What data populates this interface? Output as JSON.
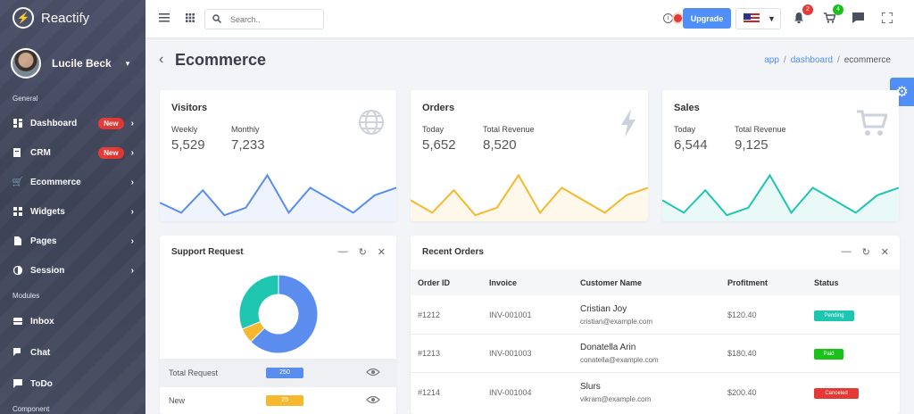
{
  "app": {
    "name": "Reactify"
  },
  "user": {
    "name": "Lucile Beck"
  },
  "sidebar": {
    "sections": [
      "General",
      "Modules",
      "Component"
    ],
    "items": [
      {
        "label": "Dashboard",
        "badge": "New",
        "icon": "dashboard-icon"
      },
      {
        "label": "CRM",
        "badge": "New",
        "icon": "crm-icon"
      },
      {
        "label": "Ecommerce",
        "badge": "",
        "icon": "cart-icon"
      },
      {
        "label": "Widgets",
        "badge": "",
        "icon": "widgets-icon"
      },
      {
        "label": "Pages",
        "badge": "",
        "icon": "pages-icon"
      },
      {
        "label": "Session",
        "badge": "",
        "icon": "session-icon"
      },
      {
        "label": "Inbox",
        "badge": "",
        "icon": "inbox-icon"
      },
      {
        "label": "Chat",
        "badge": "",
        "icon": "chat-icon"
      },
      {
        "label": "ToDo",
        "badge": "",
        "icon": "todo-icon"
      }
    ]
  },
  "topbar": {
    "search_placeholder": "Search..",
    "upgrade_label": "Upgrade",
    "notifications_count": "2",
    "cart_count": "4"
  },
  "page": {
    "title": "Ecommerce",
    "breadcrumb": [
      "app",
      "dashboard",
      "ecommerce"
    ]
  },
  "stats": [
    {
      "title": "Visitors",
      "icon": "globe-icon",
      "metrics": [
        {
          "label": "Weekly",
          "value": "5,529"
        },
        {
          "label": "Monthly",
          "value": "7,233"
        }
      ],
      "color": "#5b8def",
      "spark": [
        0.3,
        0.1,
        0.55,
        0.05,
        0.2,
        0.85,
        0.1,
        0.6,
        0.35,
        0.1,
        0.45,
        0.6
      ]
    },
    {
      "title": "Orders",
      "icon": "bolt-icon",
      "metrics": [
        {
          "label": "Today",
          "value": "5,652"
        },
        {
          "label": "Total Revenue",
          "value": "8,520"
        }
      ],
      "color": "#f5b82e",
      "spark": [
        0.35,
        0.1,
        0.55,
        0.05,
        0.2,
        0.85,
        0.1,
        0.6,
        0.35,
        0.1,
        0.45,
        0.6
      ]
    },
    {
      "title": "Sales",
      "icon": "cart-icon",
      "metrics": [
        {
          "label": "Today",
          "value": "6,544"
        },
        {
          "label": "Total Revenue",
          "value": "9,125"
        }
      ],
      "color": "#1ec6b0",
      "spark": [
        0.35,
        0.1,
        0.55,
        0.05,
        0.2,
        0.85,
        0.1,
        0.6,
        0.35,
        0.1,
        0.45,
        0.6
      ]
    }
  ],
  "support": {
    "title": "Support Request",
    "donut": [
      {
        "value": 250,
        "color": "#5b8def"
      },
      {
        "value": 25,
        "color": "#f5b82e"
      },
      {
        "value": 125,
        "color": "#1ec6b0"
      }
    ],
    "rows": [
      {
        "label": "Total Request",
        "value": "250",
        "color": "#5b8def"
      },
      {
        "label": "New",
        "value": "25",
        "color": "#f5b82e"
      }
    ]
  },
  "orders": {
    "title": "Recent Orders",
    "columns": [
      "Order ID",
      "Invoice",
      "Customer Name",
      "Profitment",
      "Status"
    ],
    "rows": [
      {
        "id": "#1212",
        "invoice": "INV-001001",
        "name": "Cristian Joy",
        "email": "cristian@example.com",
        "amount": "$120.40",
        "status": "Pending",
        "status_color": "#1ec6b0"
      },
      {
        "id": "#1213",
        "invoice": "INV-001003",
        "name": "Donatella Arin",
        "email": "conatella@example.com",
        "amount": "$180.40",
        "status": "Paid",
        "status_color": "#1bc11b"
      },
      {
        "id": "#1214",
        "invoice": "INV-001004",
        "name": "Slurs",
        "email": "vikram@example.com",
        "amount": "$200.40",
        "status": "Canceled",
        "status_color": "#e53935"
      }
    ]
  }
}
